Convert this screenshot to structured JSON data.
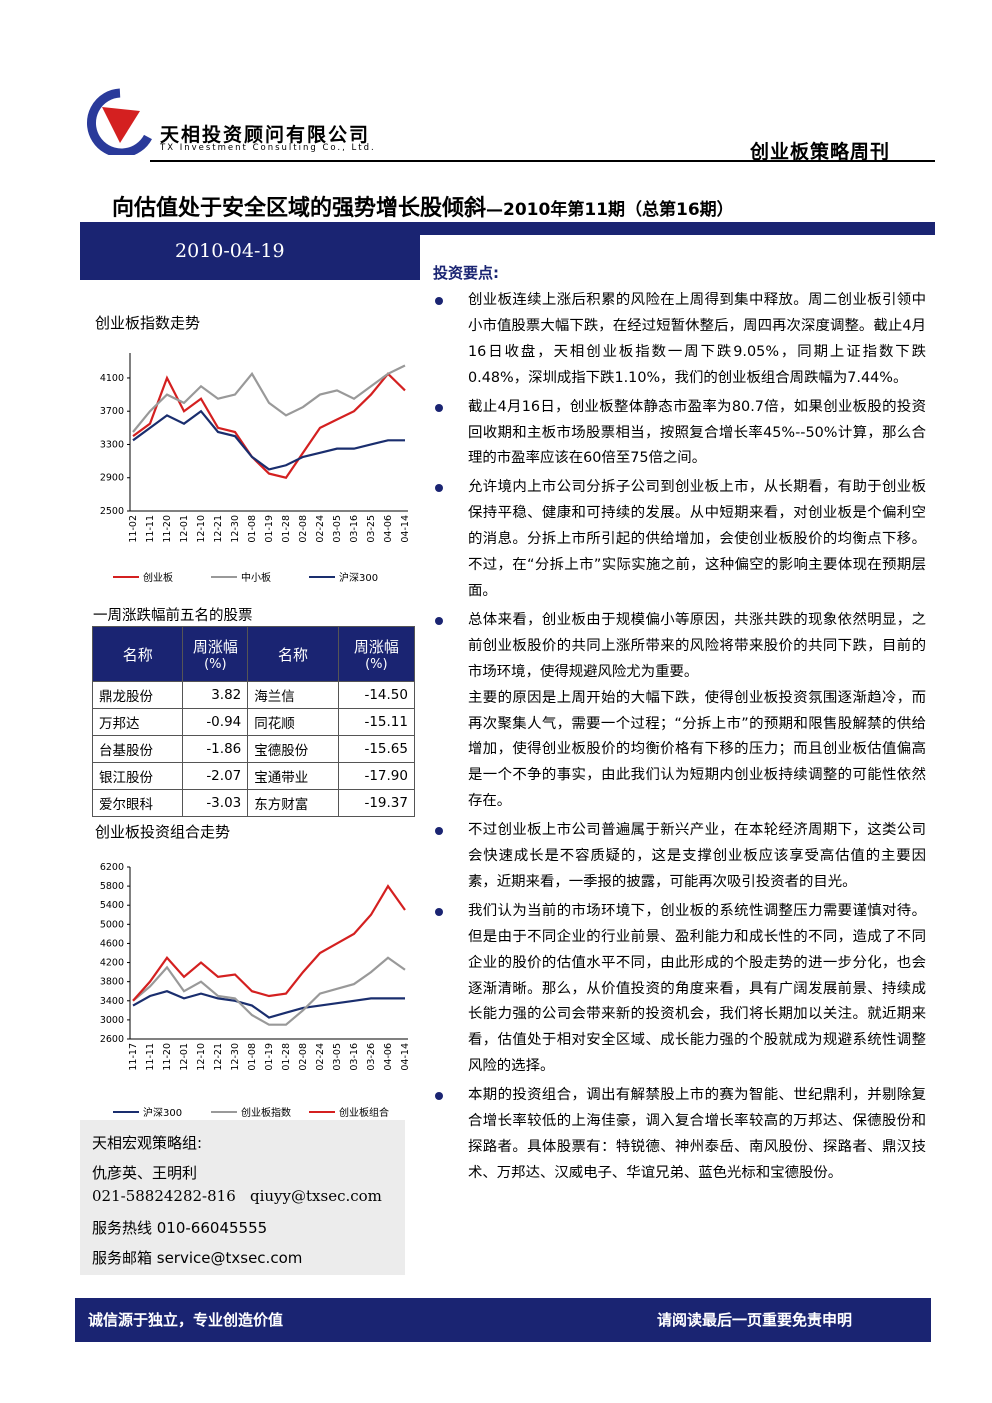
{
  "header": {
    "company_cn": "天相投资顾问有限公司",
    "company_en": "TX Investment Consulting Co., Ltd.",
    "publication": "创业板策略周刊"
  },
  "title": {
    "main": "向估值处于安全区域的强势增长股倾斜",
    "issue": "—2010年第11期（总第16期）"
  },
  "date": "2010-04-19",
  "key_points": {
    "heading": "投资要点:",
    "bullets": [
      [
        "创业板连续上涨后积累的风险在上周得到集中释放。周二创业板引领中小市值股票大幅下跌，在经过短暂休整后，周四再次深度调整。截止4月16日收盘，天相创业板指数一周下跌9.05%，同期上证指数下跌0.48%，深圳成指下跌1.10%，我们的创业板组合周跌幅为7.44%。"
      ],
      [
        "截止4月16日，创业板整体静态市盈率为80.7倍，如果创业板股的投资回收期和主板市场股票相当，按照复合增长率45%--50%计算，那么合理的市盈率应该在60倍至75倍之间。"
      ],
      [
        "允许境内上市公司分拆子公司到创业板上市，从长期看，有助于创业板保持平稳、健康和可持续的发展。从中短期来看，对创业板是个偏利空的消息。分拆上市所引起的供给增加，会使创业板股价的均衡点下移。不过，在“分拆上市”实际实施之前，这种偏空的影响主要体现在预期层面。"
      ],
      [
        "总体来看，创业板由于规模偏小等原因，共涨共跌的现象依然明显，之前创业板股价的共同上涨所带来的风险将带来股价的共同下跌，目前的市场环境，使得规避风险尤为重要。",
        "主要的原因是上周开始的大幅下跌，使得创业板投资氛围逐渐趋冷，而再次聚集人气，需要一个过程；“分拆上市”的预期和限售股解禁的供给增加，使得创业板股价的均衡价格有下移的压力；而且创业板估值偏高是一个不争的事实，由此我们认为短期内创业板持续调整的可能性依然存在。"
      ],
      [
        "不过创业板上市公司普遍属于新兴产业，在本轮经济周期下，这类公司会快速成长是不容质疑的，这是支撑创业板应该享受高估值的主要因素，近期来看，一季报的披露，可能再次吸引投资者的目光。"
      ],
      [
        "我们认为当前的市场环境下，创业板的系统性调整压力需要谨慎对待。但是由于不同企业的行业前景、盈利能力和成长性的不同，造成了不同企业的股价的估值水平不同，由此形成的个股走势的进一步分化，也会逐渐清晰。那么，从价值投资的角度来看，具有广阔发展前景、持续成长能力强的公司会带来新的投资机会，我们将长期加以关注。就近期来看，估值处于相对安全区域、成长能力强的个股就成为规避系统性调整风险的选择。"
      ],
      [
        "本期的投资组合，调出有解禁股上市的赛为智能、世纪鼎利，并剔除复合增长率较低的上海佳豪，调入复合增长率较高的万邦达、保德股份和探路者。具体股票有：特锐德、神州泰岳、南风股份、探路者、鼎汉技术、万邦达、汉威电子、华谊兄弟、蓝色光标和宝德股份。"
      ]
    ]
  },
  "chart_data": [
    {
      "type": "line",
      "title": "创业板指数走势",
      "categories": [
        "11-02",
        "11-11",
        "11-20",
        "12-01",
        "12-10",
        "12-21",
        "12-30",
        "01-08",
        "01-19",
        "01-28",
        "02-08",
        "02-24",
        "03-05",
        "03-16",
        "03-25",
        "04-06",
        "04-14"
      ],
      "ylim": [
        2500,
        4400
      ],
      "yticks": [
        2500,
        2900,
        3300,
        3700,
        4100
      ],
      "series": [
        {
          "name": "创业板",
          "color": "#d42020",
          "values": [
            3400,
            3550,
            4100,
            3700,
            3850,
            3500,
            3450,
            3150,
            2950,
            2900,
            3200,
            3500,
            3600,
            3700,
            3900,
            4150,
            3950
          ]
        },
        {
          "name": "中小板",
          "color": "#999999",
          "values": [
            3450,
            3700,
            3900,
            3800,
            4000,
            3850,
            3900,
            4150,
            3800,
            3650,
            3750,
            3900,
            3950,
            3850,
            4000,
            4150,
            4250
          ]
        },
        {
          "name": "沪深300",
          "color": "#1a2e6e",
          "values": [
            3350,
            3500,
            3650,
            3550,
            3700,
            3450,
            3400,
            3150,
            3000,
            3050,
            3150,
            3200,
            3250,
            3250,
            3300,
            3350,
            3350
          ]
        }
      ]
    },
    {
      "type": "line",
      "title": "创业板投资组合走势",
      "categories": [
        "11-17",
        "11-11",
        "11-20",
        "12-01",
        "12-10",
        "12-21",
        "12-30",
        "01-08",
        "01-19",
        "01-28",
        "02-08",
        "02-24",
        "03-05",
        "03-16",
        "03-26",
        "04-06",
        "04-14"
      ],
      "ylim": [
        2600,
        6200
      ],
      "yticks": [
        2600,
        3000,
        3400,
        3800,
        4200,
        4600,
        5000,
        5400,
        5800,
        6200
      ],
      "series": [
        {
          "name": "沪深300",
          "color": "#1a2e6e",
          "values": [
            3300,
            3500,
            3600,
            3450,
            3550,
            3450,
            3400,
            3300,
            3050,
            3150,
            3250,
            3300,
            3350,
            3400,
            3450,
            3450,
            3450
          ]
        },
        {
          "name": "创业板指数",
          "color": "#999999",
          "values": [
            3400,
            3700,
            4100,
            3600,
            3800,
            3500,
            3450,
            3100,
            2900,
            2900,
            3200,
            3550,
            3650,
            3750,
            4000,
            4300,
            4050
          ]
        },
        {
          "name": "创业板组合",
          "color": "#d42020",
          "values": [
            3400,
            3800,
            4300,
            3900,
            4200,
            3900,
            3950,
            3600,
            3500,
            3550,
            4000,
            4400,
            4600,
            4800,
            5200,
            5800,
            5300
          ]
        }
      ]
    }
  ],
  "table": {
    "title": "一周涨跌幅前五名的股票",
    "header": [
      {
        "text": "名称"
      },
      {
        "text": "周涨幅",
        "unit": "(%)"
      },
      {
        "text": "名称"
      },
      {
        "text": "周涨幅",
        "unit": "(%)"
      }
    ],
    "rows": [
      [
        "鼎龙股份",
        "3.82",
        "海兰信",
        "-14.50"
      ],
      [
        "万邦达",
        "-0.94",
        "同花顺",
        "-15.11"
      ],
      [
        "台基股份",
        "-1.86",
        "宝德股份",
        "-15.65"
      ],
      [
        "银江股份",
        "-2.07",
        "宝通带业",
        "-17.90"
      ],
      [
        "爱尔眼科",
        "-3.03",
        "东方财富",
        "-19.37"
      ]
    ]
  },
  "contact": {
    "group": "天相宏观策略组:",
    "authors": "仇彦英、王明利",
    "phone": "021-58824282-816",
    "email": "qiuyy@txsec.com",
    "hotline": "服务热线 010-66045555",
    "service_email": "服务邮箱 service@txsec.com"
  },
  "footer": {
    "left": "诚信源于独立，专业创造价值",
    "right": "请阅读最后一页重要免责申明"
  }
}
